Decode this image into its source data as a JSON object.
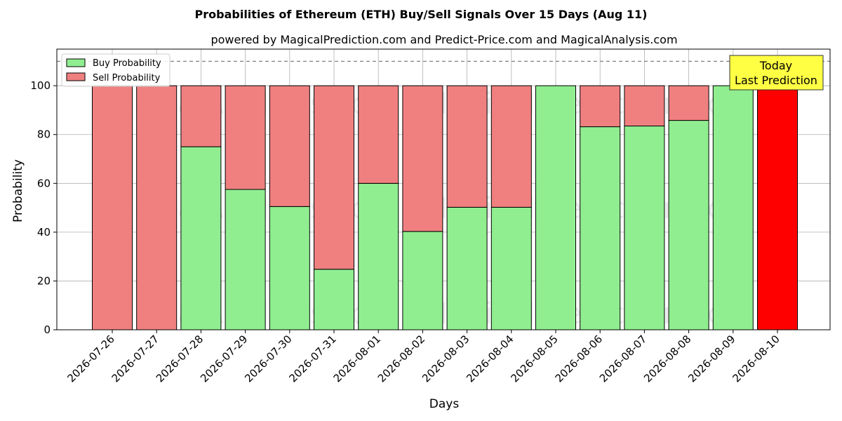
{
  "chart_data": {
    "type": "bar",
    "stacked": true,
    "title": "Probabilities of Ethereum (ETH) Buy/Sell Signals Over 15 Days (Aug 11)",
    "subtitle": "powered by MagicalPrediction.com and Predict-Price.com and MagicalAnalysis.com",
    "xlabel": "Days",
    "ylabel": "Probability",
    "ylim": [
      0,
      115
    ],
    "yticks": [
      0,
      20,
      40,
      60,
      80,
      100
    ],
    "grid": true,
    "legend_position": "top-left",
    "reference_line": {
      "y": 110,
      "style": "dashed",
      "color": "#808080"
    },
    "categories": [
      "2026-07-26",
      "2026-07-27",
      "2026-07-28",
      "2026-07-29",
      "2026-07-30",
      "2026-07-31",
      "2026-08-01",
      "2026-08-02",
      "2026-08-03",
      "2026-08-04",
      "2026-08-05",
      "2026-08-06",
      "2026-08-07",
      "2026-08-08",
      "2026-08-09",
      "2026-08-10"
    ],
    "series": [
      {
        "name": "Buy Probability",
        "color": "#90ee90",
        "values": [
          0,
          0,
          75,
          57.5,
          50.5,
          24.8,
          60,
          40.3,
          50.2,
          50.2,
          100,
          83.2,
          83.5,
          85.8,
          100,
          0
        ]
      },
      {
        "name": "Sell Probability",
        "color": "#f08080",
        "values": [
          100,
          100,
          25,
          42.5,
          49.5,
          75.2,
          40,
          59.7,
          49.8,
          49.8,
          0,
          16.8,
          16.5,
          14.2,
          0,
          100
        ]
      }
    ],
    "highlight": {
      "index": 15,
      "color": "#ff0000"
    },
    "annotation": {
      "lines": [
        "Today",
        "Last Prediction"
      ],
      "background": "#ffff44"
    },
    "watermarks": [
      "MagicalAnalysis.com",
      "MagicalPrediction.com"
    ]
  }
}
